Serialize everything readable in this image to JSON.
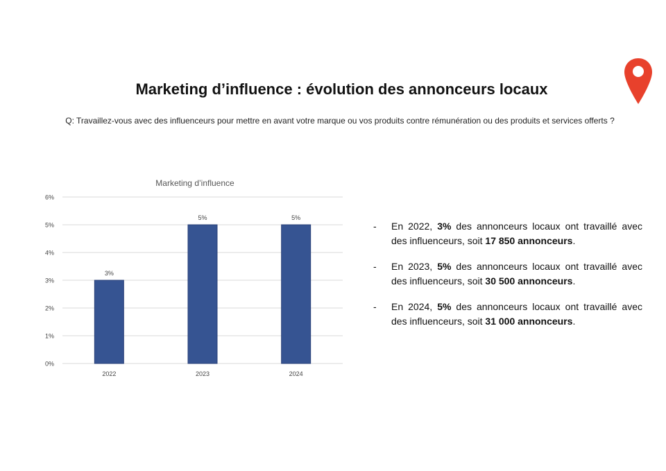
{
  "header": {
    "title": "Marketing d’influence : évolution des annonceurs locaux",
    "question": "Q: Travaillez-vous avec des influenceurs pour mettre en avant votre marque ou vos produits contre rémunération ou des produits et services offerts ?",
    "pin_icon": "map-pin-icon",
    "pin_color": "#e8412c"
  },
  "chart_data": {
    "type": "bar",
    "title": "Marketing d’influence",
    "categories": [
      "2022",
      "2023",
      "2024"
    ],
    "values": [
      3,
      5,
      5
    ],
    "data_labels": [
      "3%",
      "5%",
      "5%"
    ],
    "ylim": [
      0,
      6
    ],
    "yticks": [
      "0%",
      "1%",
      "2%",
      "3%",
      "4%",
      "5%",
      "6%"
    ],
    "xlabel": "",
    "ylabel": "",
    "grid": true,
    "bar_color": "#365492",
    "grid_color": "#d9d9d9"
  },
  "bullets": [
    {
      "dash": "-",
      "pre": "En 2022, ",
      "pct": "3%",
      "mid": " des annonceurs locaux ont travaillé avec des influenceurs, soit ",
      "count": "17 850 annonceurs",
      "end": "."
    },
    {
      "dash": "-",
      "pre": "En 2023, ",
      "pct": "5%",
      "mid": " des annonceurs locaux ont travaillé avec des influenceurs, soit ",
      "count": "30 500 annonceurs",
      "end": "."
    },
    {
      "dash": "-",
      "pre": "En 2024, ",
      "pct": "5%",
      "mid": " des annonceurs locaux ont travaillé avec des influenceurs, soit ",
      "count": "31 000 annonceurs",
      "end": "."
    }
  ]
}
